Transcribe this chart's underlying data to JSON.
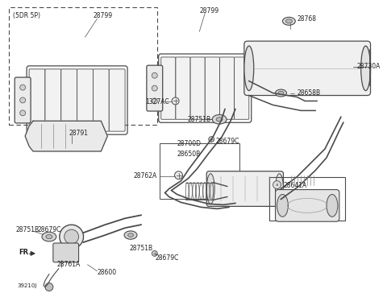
{
  "bg_color": "#ffffff",
  "lc": "#4a4a4a",
  "lc2": "#333333",
  "fs": 5.5,
  "fs2": 5.0,
  "lw": 1.0,
  "labels": {
    "5DR5P": "(5DR 5P)",
    "p28799_a": "28799",
    "p28799_b": "28799",
    "p1327AC": "1327AC",
    "p28768": "28768",
    "p28730A": "28730A",
    "p28658B": "28658B",
    "p28751B_top": "28751B",
    "p28679C_top": "28679C",
    "p28791": "28791",
    "p28700D": "28700D",
    "p28650B": "28650B",
    "p28762A": "28762A",
    "p28641A": "28641A",
    "p28751B_bot": "28751B",
    "p28679C_bot": "28679C",
    "p28679C_mid": "28679C",
    "p28751B_mid": "28751B",
    "p28761A": "28761A",
    "p28600": "28600",
    "p39210J": "39210J",
    "FR": "FR."
  }
}
